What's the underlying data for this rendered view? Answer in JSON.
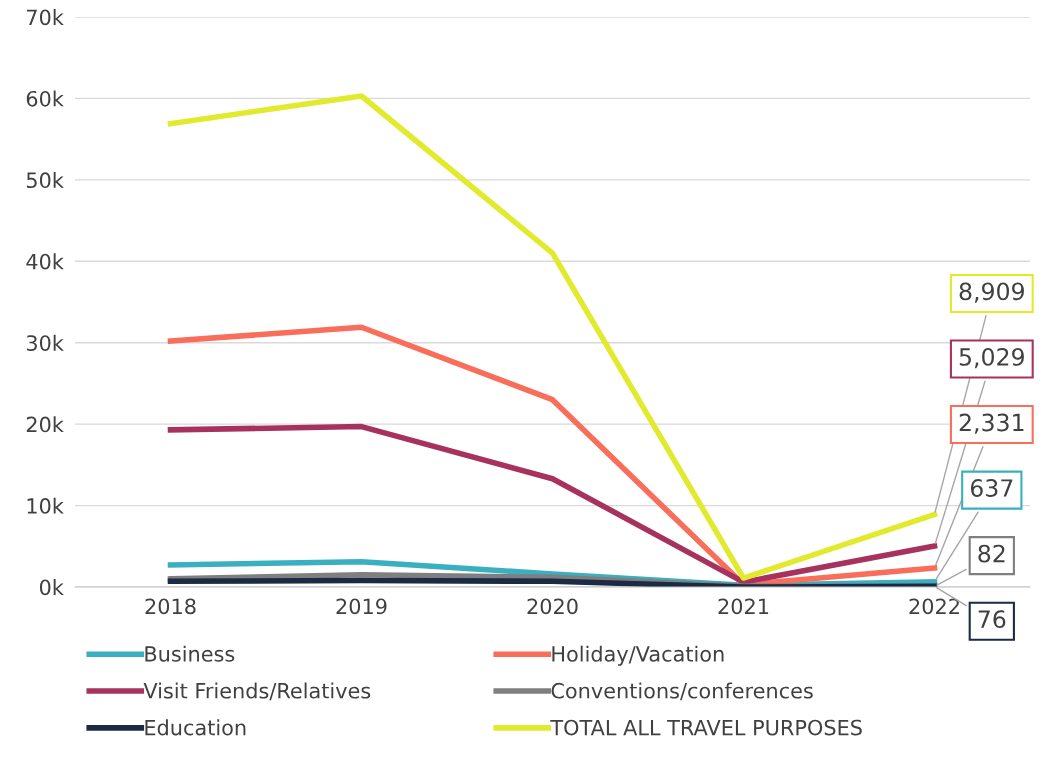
{
  "chart_data": {
    "type": "line",
    "categories": [
      "2018",
      "2019",
      "2020",
      "2021",
      "2022"
    ],
    "series": [
      {
        "name": "Business",
        "color": "#3aafc0",
        "values": [
          2700,
          3100,
          1600,
          200,
          637
        ],
        "value_labels": [
          null,
          null,
          null,
          null,
          "637"
        ]
      },
      {
        "name": "Holiday/Vacation",
        "color": "#f96e5a",
        "values": [
          30200,
          31900,
          23000,
          300,
          2331
        ],
        "value_labels": [
          null,
          null,
          null,
          null,
          "2,331"
        ]
      },
      {
        "name": "Visit Friends/Relatives",
        "color": "#a8325e",
        "values": [
          19300,
          19700,
          13300,
          600,
          5029
        ],
        "value_labels": [
          null,
          null,
          null,
          null,
          "5,029"
        ]
      },
      {
        "name": "Conventions/conferences",
        "color": "#7f7f7f",
        "values": [
          1000,
          1500,
          1200,
          100,
          82
        ],
        "value_labels": [
          null,
          null,
          null,
          null,
          "82"
        ]
      },
      {
        "name": "Education",
        "color": "#1b2a45",
        "values": [
          700,
          800,
          700,
          0,
          76
        ],
        "value_labels": [
          null,
          null,
          null,
          null,
          "76"
        ]
      },
      {
        "name": "TOTAL ALL TRAVEL PURPOSES",
        "color": "#e2ea2e",
        "values": [
          56900,
          60300,
          41000,
          1100,
          8909
        ],
        "value_labels": [
          null,
          null,
          null,
          null,
          "8,909"
        ]
      }
    ],
    "ylim": [
      0,
      70000
    ],
    "yticks": [
      {
        "value": 0,
        "label": "0k"
      },
      {
        "value": 10000,
        "label": "10k"
      },
      {
        "value": 20000,
        "label": "20k"
      },
      {
        "value": 30000,
        "label": "30k"
      },
      {
        "value": 40000,
        "label": "40k"
      },
      {
        "value": 50000,
        "label": "50k"
      },
      {
        "value": 60000,
        "label": "60k"
      },
      {
        "value": 70000,
        "label": "70k"
      }
    ],
    "grid": "y",
    "legend": "bottom",
    "marker": "none",
    "line_style": "solid"
  }
}
